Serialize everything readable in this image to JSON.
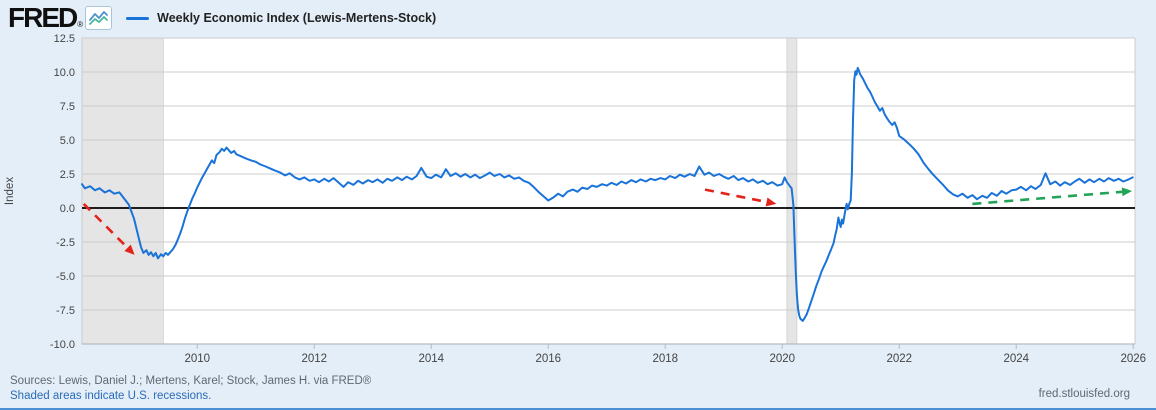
{
  "header": {
    "logo_text": "FRED",
    "logo_reg": "®",
    "legend": {
      "label": "Weekly Economic Index (Lewis-Mertens-Stock)",
      "line_color": "#1a73d9"
    }
  },
  "footer": {
    "sources_text": "Sources: Lewis, Daniel J.; Mertens, Karel; Stock, James H. via FRED®",
    "recessions_link": "Shaded areas indicate U.S. recessions.",
    "site_text": "fred.stlouisfed.org"
  },
  "colors": {
    "page_background": "#e4eef8",
    "plot_background": "#ffffff",
    "gridline": "#cccccc",
    "axis_line": "#b3bac2",
    "tick_text": "#444444",
    "series_line": "#1a73d9",
    "zero_line": "#000000",
    "recession_band": "#e5e5e5",
    "recession_border": "#cfcfcf",
    "annotation_red": "#e2231a",
    "annotation_green": "#21a457",
    "link_blue": "#2b6cb8",
    "footer_gray": "#5e6974"
  },
  "chart_data": {
    "type": "line",
    "title": "Weekly Economic Index (Lewis-Mertens-Stock)",
    "xlabel": "",
    "ylabel": "Index",
    "xlim": [
      2008.03,
      2026.03
    ],
    "ylim": [
      -10.0,
      12.5
    ],
    "yticks": [
      12.5,
      10.0,
      7.5,
      5.0,
      2.5,
      0.0,
      -2.5,
      -5.0,
      -7.5,
      -10.0
    ],
    "xticks": [
      2010,
      2012,
      2014,
      2016,
      2018,
      2020,
      2022,
      2024,
      2026
    ],
    "grid": "horizontal",
    "legend_position": "top-left",
    "zero_line": 0,
    "recession_bands": [
      [
        2008.03,
        2009.42
      ],
      [
        2020.08,
        2020.25
      ]
    ],
    "series": [
      {
        "name": "Weekly Economic Index (Lewis-Mertens-Stock)",
        "color": "#1a73d9",
        "points": [
          [
            2008.03,
            1.75
          ],
          [
            2008.08,
            1.45
          ],
          [
            2008.17,
            1.6
          ],
          [
            2008.25,
            1.3
          ],
          [
            2008.33,
            1.45
          ],
          [
            2008.42,
            1.15
          ],
          [
            2008.5,
            1.3
          ],
          [
            2008.58,
            1.05
          ],
          [
            2008.67,
            1.15
          ],
          [
            2008.75,
            0.7
          ],
          [
            2008.83,
            0.25
          ],
          [
            2008.92,
            -0.8
          ],
          [
            2009.0,
            -2.2
          ],
          [
            2009.04,
            -2.9
          ],
          [
            2009.08,
            -3.3
          ],
          [
            2009.13,
            -3.1
          ],
          [
            2009.17,
            -3.45
          ],
          [
            2009.21,
            -3.25
          ],
          [
            2009.25,
            -3.55
          ],
          [
            2009.29,
            -3.3
          ],
          [
            2009.33,
            -3.7
          ],
          [
            2009.38,
            -3.4
          ],
          [
            2009.42,
            -3.55
          ],
          [
            2009.46,
            -3.3
          ],
          [
            2009.5,
            -3.45
          ],
          [
            2009.54,
            -3.25
          ],
          [
            2009.58,
            -3.05
          ],
          [
            2009.63,
            -2.7
          ],
          [
            2009.67,
            -2.3
          ],
          [
            2009.71,
            -1.85
          ],
          [
            2009.75,
            -1.35
          ],
          [
            2009.79,
            -0.75
          ],
          [
            2009.83,
            -0.25
          ],
          [
            2009.88,
            0.3
          ],
          [
            2009.92,
            0.75
          ],
          [
            2009.96,
            1.1
          ],
          [
            2010.0,
            1.5
          ],
          [
            2010.08,
            2.2
          ],
          [
            2010.17,
            2.9
          ],
          [
            2010.25,
            3.5
          ],
          [
            2010.29,
            3.3
          ],
          [
            2010.33,
            3.9
          ],
          [
            2010.38,
            4.1
          ],
          [
            2010.42,
            4.35
          ],
          [
            2010.46,
            4.2
          ],
          [
            2010.5,
            4.45
          ],
          [
            2010.54,
            4.25
          ],
          [
            2010.58,
            4.05
          ],
          [
            2010.63,
            4.2
          ],
          [
            2010.67,
            3.95
          ],
          [
            2010.75,
            3.8
          ],
          [
            2010.83,
            3.65
          ],
          [
            2010.92,
            3.5
          ],
          [
            2011.0,
            3.4
          ],
          [
            2011.08,
            3.2
          ],
          [
            2011.17,
            3.05
          ],
          [
            2011.25,
            2.9
          ],
          [
            2011.33,
            2.75
          ],
          [
            2011.42,
            2.6
          ],
          [
            2011.5,
            2.4
          ],
          [
            2011.58,
            2.55
          ],
          [
            2011.67,
            2.25
          ],
          [
            2011.75,
            2.1
          ],
          [
            2011.83,
            2.25
          ],
          [
            2011.92,
            2.0
          ],
          [
            2012.0,
            2.1
          ],
          [
            2012.08,
            1.9
          ],
          [
            2012.17,
            2.15
          ],
          [
            2012.25,
            1.95
          ],
          [
            2012.33,
            2.2
          ],
          [
            2012.42,
            1.85
          ],
          [
            2012.5,
            1.55
          ],
          [
            2012.58,
            1.9
          ],
          [
            2012.67,
            1.7
          ],
          [
            2012.75,
            2.0
          ],
          [
            2012.83,
            1.8
          ],
          [
            2012.92,
            2.05
          ],
          [
            2013.0,
            1.9
          ],
          [
            2013.08,
            2.1
          ],
          [
            2013.17,
            1.85
          ],
          [
            2013.25,
            2.15
          ],
          [
            2013.33,
            2.0
          ],
          [
            2013.42,
            2.25
          ],
          [
            2013.5,
            2.05
          ],
          [
            2013.58,
            2.3
          ],
          [
            2013.67,
            2.1
          ],
          [
            2013.75,
            2.35
          ],
          [
            2013.83,
            2.95
          ],
          [
            2013.92,
            2.3
          ],
          [
            2014.0,
            2.2
          ],
          [
            2014.08,
            2.45
          ],
          [
            2014.17,
            2.25
          ],
          [
            2014.25,
            2.85
          ],
          [
            2014.33,
            2.35
          ],
          [
            2014.42,
            2.55
          ],
          [
            2014.5,
            2.3
          ],
          [
            2014.58,
            2.5
          ],
          [
            2014.67,
            2.25
          ],
          [
            2014.75,
            2.45
          ],
          [
            2014.83,
            2.2
          ],
          [
            2014.92,
            2.4
          ],
          [
            2015.0,
            2.6
          ],
          [
            2015.08,
            2.35
          ],
          [
            2015.17,
            2.5
          ],
          [
            2015.25,
            2.25
          ],
          [
            2015.33,
            2.4
          ],
          [
            2015.42,
            2.15
          ],
          [
            2015.5,
            2.25
          ],
          [
            2015.58,
            2.0
          ],
          [
            2015.67,
            1.85
          ],
          [
            2015.75,
            1.55
          ],
          [
            2015.83,
            1.2
          ],
          [
            2015.92,
            0.85
          ],
          [
            2016.0,
            0.55
          ],
          [
            2016.08,
            0.75
          ],
          [
            2016.17,
            1.05
          ],
          [
            2016.25,
            0.85
          ],
          [
            2016.33,
            1.2
          ],
          [
            2016.42,
            1.35
          ],
          [
            2016.5,
            1.2
          ],
          [
            2016.58,
            1.5
          ],
          [
            2016.67,
            1.4
          ],
          [
            2016.75,
            1.65
          ],
          [
            2016.83,
            1.55
          ],
          [
            2016.92,
            1.75
          ],
          [
            2017.0,
            1.65
          ],
          [
            2017.08,
            1.85
          ],
          [
            2017.17,
            1.7
          ],
          [
            2017.25,
            1.95
          ],
          [
            2017.33,
            1.8
          ],
          [
            2017.42,
            2.05
          ],
          [
            2017.5,
            1.9
          ],
          [
            2017.58,
            2.1
          ],
          [
            2017.67,
            1.95
          ],
          [
            2017.75,
            2.15
          ],
          [
            2017.83,
            2.05
          ],
          [
            2017.92,
            2.2
          ],
          [
            2018.0,
            2.1
          ],
          [
            2018.08,
            2.35
          ],
          [
            2018.17,
            2.2
          ],
          [
            2018.25,
            2.45
          ],
          [
            2018.33,
            2.3
          ],
          [
            2018.42,
            2.5
          ],
          [
            2018.5,
            2.35
          ],
          [
            2018.58,
            3.05
          ],
          [
            2018.67,
            2.45
          ],
          [
            2018.75,
            2.6
          ],
          [
            2018.83,
            2.35
          ],
          [
            2018.92,
            2.5
          ],
          [
            2019.0,
            2.3
          ],
          [
            2019.08,
            2.15
          ],
          [
            2019.17,
            2.35
          ],
          [
            2019.25,
            2.05
          ],
          [
            2019.33,
            2.2
          ],
          [
            2019.42,
            1.95
          ],
          [
            2019.5,
            2.1
          ],
          [
            2019.58,
            1.85
          ],
          [
            2019.67,
            2.0
          ],
          [
            2019.75,
            1.75
          ],
          [
            2019.83,
            1.9
          ],
          [
            2019.92,
            1.65
          ],
          [
            2020.0,
            1.75
          ],
          [
            2020.04,
            2.25
          ],
          [
            2020.08,
            1.9
          ],
          [
            2020.13,
            1.6
          ],
          [
            2020.16,
            1.45
          ],
          [
            2020.19,
            0.2
          ],
          [
            2020.21,
            -2.2
          ],
          [
            2020.23,
            -4.6
          ],
          [
            2020.25,
            -6.4
          ],
          [
            2020.27,
            -7.4
          ],
          [
            2020.29,
            -7.9
          ],
          [
            2020.31,
            -8.15
          ],
          [
            2020.35,
            -8.3
          ],
          [
            2020.38,
            -8.1
          ],
          [
            2020.42,
            -7.8
          ],
          [
            2020.46,
            -7.3
          ],
          [
            2020.5,
            -6.8
          ],
          [
            2020.54,
            -6.3
          ],
          [
            2020.58,
            -5.75
          ],
          [
            2020.63,
            -5.2
          ],
          [
            2020.67,
            -4.7
          ],
          [
            2020.71,
            -4.3
          ],
          [
            2020.75,
            -3.95
          ],
          [
            2020.79,
            -3.5
          ],
          [
            2020.83,
            -3.1
          ],
          [
            2020.88,
            -2.55
          ],
          [
            2020.9,
            -2.1
          ],
          [
            2020.93,
            -1.55
          ],
          [
            2020.96,
            -0.7
          ],
          [
            2020.98,
            -1.1
          ],
          [
            2021.0,
            -1.4
          ],
          [
            2021.02,
            -0.85
          ],
          [
            2021.04,
            -1.15
          ],
          [
            2021.06,
            -0.6
          ],
          [
            2021.08,
            -0.15
          ],
          [
            2021.1,
            0.3
          ],
          [
            2021.12,
            -0.1
          ],
          [
            2021.15,
            0.35
          ],
          [
            2021.17,
            0.55
          ],
          [
            2021.19,
            2.6
          ],
          [
            2021.21,
            6.5
          ],
          [
            2021.23,
            9.4
          ],
          [
            2021.25,
            10.05
          ],
          [
            2021.27,
            9.8
          ],
          [
            2021.29,
            10.3
          ],
          [
            2021.31,
            10.1
          ],
          [
            2021.33,
            9.85
          ],
          [
            2021.38,
            9.5
          ],
          [
            2021.42,
            9.15
          ],
          [
            2021.46,
            8.8
          ],
          [
            2021.5,
            8.55
          ],
          [
            2021.54,
            8.2
          ],
          [
            2021.58,
            7.8
          ],
          [
            2021.63,
            7.45
          ],
          [
            2021.67,
            7.15
          ],
          [
            2021.71,
            7.35
          ],
          [
            2021.75,
            6.9
          ],
          [
            2021.79,
            6.6
          ],
          [
            2021.83,
            6.35
          ],
          [
            2021.88,
            6.1
          ],
          [
            2021.92,
            6.3
          ],
          [
            2021.96,
            5.9
          ],
          [
            2022.0,
            5.3
          ],
          [
            2022.08,
            5.05
          ],
          [
            2022.17,
            4.7
          ],
          [
            2022.25,
            4.35
          ],
          [
            2022.33,
            3.95
          ],
          [
            2022.42,
            3.3
          ],
          [
            2022.5,
            2.85
          ],
          [
            2022.58,
            2.45
          ],
          [
            2022.67,
            2.05
          ],
          [
            2022.75,
            1.7
          ],
          [
            2022.83,
            1.3
          ],
          [
            2022.92,
            1.0
          ],
          [
            2023.0,
            0.85
          ],
          [
            2023.08,
            1.05
          ],
          [
            2023.17,
            0.75
          ],
          [
            2023.25,
            0.95
          ],
          [
            2023.33,
            0.65
          ],
          [
            2023.42,
            0.9
          ],
          [
            2023.5,
            0.75
          ],
          [
            2023.58,
            1.1
          ],
          [
            2023.67,
            0.9
          ],
          [
            2023.75,
            1.25
          ],
          [
            2023.83,
            1.05
          ],
          [
            2023.92,
            1.3
          ],
          [
            2024.0,
            1.35
          ],
          [
            2024.08,
            1.55
          ],
          [
            2024.17,
            1.3
          ],
          [
            2024.25,
            1.6
          ],
          [
            2024.33,
            1.4
          ],
          [
            2024.42,
            1.7
          ],
          [
            2024.5,
            2.55
          ],
          [
            2024.58,
            1.75
          ],
          [
            2024.67,
            1.95
          ],
          [
            2024.75,
            1.65
          ],
          [
            2024.83,
            1.9
          ],
          [
            2024.92,
            1.7
          ],
          [
            2025.0,
            1.95
          ],
          [
            2025.08,
            2.15
          ],
          [
            2025.17,
            1.85
          ],
          [
            2025.25,
            2.1
          ],
          [
            2025.33,
            1.9
          ],
          [
            2025.42,
            2.15
          ],
          [
            2025.5,
            1.95
          ],
          [
            2025.58,
            2.2
          ],
          [
            2025.67,
            2.0
          ],
          [
            2025.75,
            2.15
          ],
          [
            2025.83,
            1.95
          ],
          [
            2025.92,
            2.1
          ],
          [
            2025.99,
            2.25
          ]
        ]
      }
    ],
    "annotations": [
      {
        "type": "dashed-arrow",
        "name": "red-decline-arrow-2008",
        "color": "#e2231a",
        "from": [
          2008.06,
          0.3
        ],
        "to": [
          2008.93,
          -3.45
        ]
      },
      {
        "type": "dashed-arrow",
        "name": "red-decline-arrow-2019",
        "color": "#e2231a",
        "from": [
          2018.68,
          1.35
        ],
        "to": [
          2019.9,
          0.3
        ]
      },
      {
        "type": "dashed-arrow",
        "name": "green-uptrend-arrow-2023-2026",
        "color": "#21a457",
        "from": [
          2023.25,
          0.3
        ],
        "to": [
          2025.98,
          1.25
        ]
      }
    ]
  }
}
